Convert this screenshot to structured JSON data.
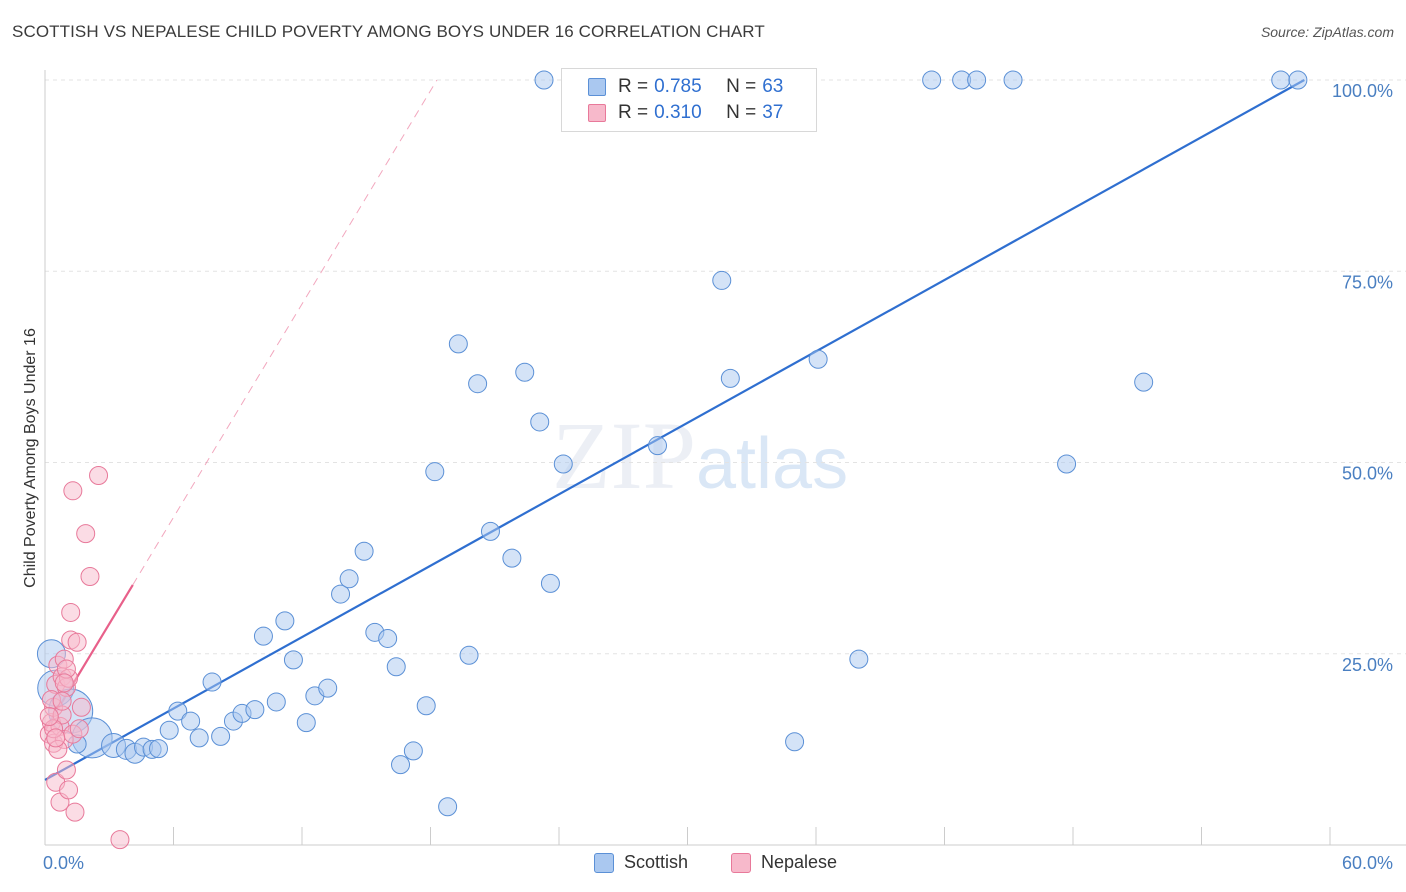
{
  "header": {
    "title": "SCOTTISH VS NEPALESE CHILD POVERTY AMONG BOYS UNDER 16 CORRELATION CHART",
    "source": "Source: ZipAtlas.com"
  },
  "watermark": {
    "zip": "ZIP",
    "atlas": "atlas"
  },
  "legend": {
    "rows": [
      {
        "r_label": "R = ",
        "r_value": "0.785",
        "n_label": "N = ",
        "n_value": "63"
      },
      {
        "r_label": "R = ",
        "r_value": "0.310",
        "n_label": "N = ",
        "n_value": "37"
      }
    ]
  },
  "bottom_legend": {
    "scottish": "Scottish",
    "nepalese": "Nepalese"
  },
  "colors": {
    "scottish_fill": "#aac8f0",
    "scottish_stroke": "#5b90d6",
    "scottish_line": "#2f6fd0",
    "nepalese_fill": "#f7b9cb",
    "nepalese_stroke": "#e8799a",
    "nepalese_line": "#e8608a",
    "tick_label": "#4a7fc1",
    "grid": "#e3e3e3"
  },
  "chart_data": {
    "type": "scatter",
    "title": "SCOTTISH VS NEPALESE CHILD POVERTY AMONG BOYS UNDER 16 CORRELATION CHART",
    "xlabel": "",
    "ylabel": "Child Poverty Among Boys Under 16",
    "xlim": [
      0,
      60
    ],
    "ylim": [
      0,
      100
    ],
    "x_tick_labels": [
      "0.0%",
      "60.0%"
    ],
    "y_tick_labels": [
      "25.0%",
      "50.0%",
      "75.0%",
      "100.0%"
    ],
    "y_ticks": [
      25,
      50,
      75,
      100
    ],
    "grid": true,
    "legend_position": "top-center",
    "series": [
      {
        "name": "Scottish",
        "R": 0.785,
        "N": 63,
        "trend": {
          "x": [
            0,
            58.8
          ],
          "y": [
            8.5,
            100
          ]
        },
        "points": [
          {
            "x": 0.3,
            "y": 25.0,
            "s": 14
          },
          {
            "x": 0.5,
            "y": 20.5,
            "s": 18
          },
          {
            "x": 1.2,
            "y": 17.5,
            "s": 22
          },
          {
            "x": 2.2,
            "y": 14.0,
            "s": 20
          },
          {
            "x": 3.2,
            "y": 13.0,
            "s": 12
          },
          {
            "x": 3.8,
            "y": 12.5,
            "s": 10
          },
          {
            "x": 4.2,
            "y": 12.0,
            "s": 10
          },
          {
            "x": 4.6,
            "y": 12.8,
            "s": 9
          },
          {
            "x": 5.0,
            "y": 12.5,
            "s": 9
          },
          {
            "x": 5.3,
            "y": 12.6,
            "s": 9
          },
          {
            "x": 5.8,
            "y": 15.0,
            "s": 9
          },
          {
            "x": 6.2,
            "y": 17.5,
            "s": 9
          },
          {
            "x": 6.8,
            "y": 16.2,
            "s": 9
          },
          {
            "x": 7.2,
            "y": 14.0,
            "s": 9
          },
          {
            "x": 7.8,
            "y": 21.3,
            "s": 9
          },
          {
            "x": 8.2,
            "y": 14.2,
            "s": 9
          },
          {
            "x": 8.8,
            "y": 16.2,
            "s": 9
          },
          {
            "x": 9.2,
            "y": 17.2,
            "s": 9
          },
          {
            "x": 9.8,
            "y": 17.7,
            "s": 9
          },
          {
            "x": 10.2,
            "y": 27.3,
            "s": 9
          },
          {
            "x": 10.8,
            "y": 18.7,
            "s": 9
          },
          {
            "x": 11.2,
            "y": 29.3,
            "s": 9
          },
          {
            "x": 11.6,
            "y": 24.2,
            "s": 9
          },
          {
            "x": 12.2,
            "y": 16.0,
            "s": 9
          },
          {
            "x": 12.6,
            "y": 19.5,
            "s": 9
          },
          {
            "x": 13.2,
            "y": 20.5,
            "s": 9
          },
          {
            "x": 13.8,
            "y": 32.8,
            "s": 9
          },
          {
            "x": 14.2,
            "y": 34.8,
            "s": 9
          },
          {
            "x": 14.9,
            "y": 38.4,
            "s": 9
          },
          {
            "x": 15.4,
            "y": 27.8,
            "s": 9
          },
          {
            "x": 16.0,
            "y": 27.0,
            "s": 9
          },
          {
            "x": 16.4,
            "y": 23.3,
            "s": 9
          },
          {
            "x": 16.6,
            "y": 10.5,
            "s": 9
          },
          {
            "x": 17.2,
            "y": 12.3,
            "s": 9
          },
          {
            "x": 17.8,
            "y": 18.2,
            "s": 9
          },
          {
            "x": 18.2,
            "y": 48.8,
            "s": 9
          },
          {
            "x": 18.8,
            "y": 5.0,
            "s": 9
          },
          {
            "x": 19.3,
            "y": 65.5,
            "s": 9
          },
          {
            "x": 19.8,
            "y": 24.8,
            "s": 9
          },
          {
            "x": 20.2,
            "y": 60.3,
            "s": 9
          },
          {
            "x": 20.8,
            "y": 41.0,
            "s": 9
          },
          {
            "x": 21.8,
            "y": 37.5,
            "s": 9
          },
          {
            "x": 22.4,
            "y": 61.8,
            "s": 9
          },
          {
            "x": 23.1,
            "y": 55.3,
            "s": 9
          },
          {
            "x": 23.3,
            "y": 100.0,
            "s": 9
          },
          {
            "x": 23.6,
            "y": 34.2,
            "s": 9
          },
          {
            "x": 24.2,
            "y": 49.8,
            "s": 9
          },
          {
            "x": 27.2,
            "y": 100.0,
            "s": 9
          },
          {
            "x": 28.6,
            "y": 52.2,
            "s": 9
          },
          {
            "x": 31.6,
            "y": 73.8,
            "s": 9
          },
          {
            "x": 32.0,
            "y": 61.0,
            "s": 9
          },
          {
            "x": 35.0,
            "y": 13.5,
            "s": 9
          },
          {
            "x": 36.1,
            "y": 63.5,
            "s": 9
          },
          {
            "x": 38.0,
            "y": 24.3,
            "s": 9
          },
          {
            "x": 41.4,
            "y": 100.0,
            "s": 9
          },
          {
            "x": 42.8,
            "y": 100.0,
            "s": 9
          },
          {
            "x": 43.5,
            "y": 100.0,
            "s": 9
          },
          {
            "x": 45.2,
            "y": 100.0,
            "s": 9
          },
          {
            "x": 47.7,
            "y": 49.8,
            "s": 9
          },
          {
            "x": 51.3,
            "y": 60.5,
            "s": 9
          },
          {
            "x": 57.7,
            "y": 100.0,
            "s": 9
          },
          {
            "x": 58.5,
            "y": 100.0,
            "s": 9
          },
          {
            "x": 1.5,
            "y": 13.2,
            "s": 9
          }
        ]
      },
      {
        "name": "Nepalese",
        "R": 0.31,
        "N": 37,
        "trend": {
          "x": [
            0,
            4.1
          ],
          "y": [
            15.0,
            34.0
          ]
        },
        "trend_extension": {
          "x": [
            4.1,
            18.3
          ],
          "y": [
            34.0,
            100
          ]
        },
        "points": [
          {
            "x": 0.2,
            "y": 14.5,
            "s": 9
          },
          {
            "x": 0.3,
            "y": 16.0,
            "s": 9
          },
          {
            "x": 0.4,
            "y": 13.3,
            "s": 9
          },
          {
            "x": 0.4,
            "y": 18.0,
            "s": 9
          },
          {
            "x": 0.5,
            "y": 21.0,
            "s": 9
          },
          {
            "x": 0.5,
            "y": 8.2,
            "s": 9
          },
          {
            "x": 0.6,
            "y": 23.5,
            "s": 9
          },
          {
            "x": 0.7,
            "y": 5.6,
            "s": 9
          },
          {
            "x": 0.7,
            "y": 15.5,
            "s": 9
          },
          {
            "x": 0.8,
            "y": 22.0,
            "s": 9
          },
          {
            "x": 0.8,
            "y": 17.0,
            "s": 9
          },
          {
            "x": 0.9,
            "y": 24.3,
            "s": 9
          },
          {
            "x": 0.9,
            "y": 13.8,
            "s": 9
          },
          {
            "x": 1.0,
            "y": 20.6,
            "s": 9
          },
          {
            "x": 1.0,
            "y": 9.8,
            "s": 9
          },
          {
            "x": 1.1,
            "y": 7.2,
            "s": 9
          },
          {
            "x": 1.1,
            "y": 21.8,
            "s": 9
          },
          {
            "x": 1.2,
            "y": 26.8,
            "s": 9
          },
          {
            "x": 1.2,
            "y": 30.4,
            "s": 9
          },
          {
            "x": 1.3,
            "y": 14.5,
            "s": 9
          },
          {
            "x": 1.3,
            "y": 46.3,
            "s": 9
          },
          {
            "x": 1.4,
            "y": 4.3,
            "s": 9
          },
          {
            "x": 1.5,
            "y": 26.5,
            "s": 9
          },
          {
            "x": 1.6,
            "y": 15.2,
            "s": 9
          },
          {
            "x": 1.7,
            "y": 18.0,
            "s": 9
          },
          {
            "x": 1.9,
            "y": 40.7,
            "s": 9
          },
          {
            "x": 2.1,
            "y": 35.1,
            "s": 9
          },
          {
            "x": 2.5,
            "y": 48.3,
            "s": 9
          },
          {
            "x": 3.5,
            "y": 0.7,
            "s": 9
          },
          {
            "x": 0.3,
            "y": 19.0,
            "s": 9
          },
          {
            "x": 0.6,
            "y": 12.5,
            "s": 9
          },
          {
            "x": 0.4,
            "y": 15.2,
            "s": 9
          },
          {
            "x": 0.8,
            "y": 18.8,
            "s": 9
          },
          {
            "x": 1.0,
            "y": 23.0,
            "s": 9
          },
          {
            "x": 0.2,
            "y": 16.8,
            "s": 9
          },
          {
            "x": 0.5,
            "y": 14.0,
            "s": 9
          },
          {
            "x": 0.9,
            "y": 21.2,
            "s": 9
          }
        ]
      }
    ]
  }
}
